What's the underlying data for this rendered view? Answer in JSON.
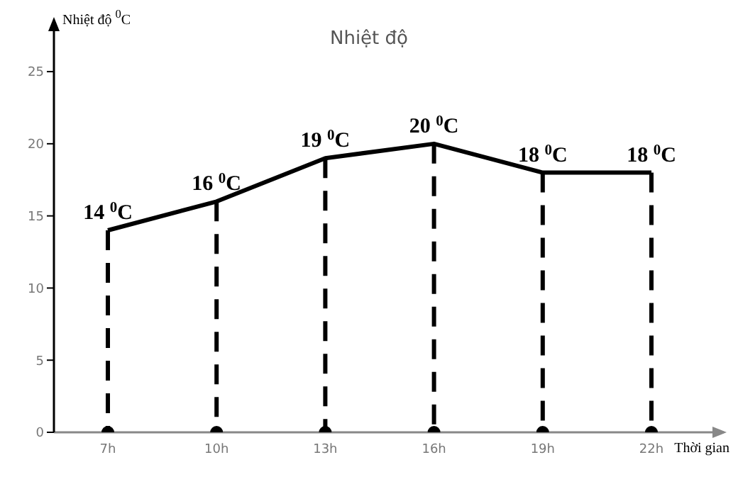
{
  "chart_data": {
    "type": "line",
    "title": "Nhiệt độ",
    "xlabel": "Thời gian",
    "ylabel": "Nhiệt độ $^{0}$C",
    "categories": [
      "7h",
      "10h",
      "13h",
      "16h",
      "19h",
      "22h"
    ],
    "series": [
      {
        "color": "#000000",
        "values": [
          14,
          16,
          19,
          20,
          18,
          18
        ],
        "value_labels": [
          "14 $^{0}$C",
          "16 $^{0}$C",
          "19 $^{0}$C",
          "20 $^{0}$C",
          "18 $^{0}$C",
          "18 $^{0}$C"
        ]
      }
    ],
    "ylim": [
      0,
      28
    ],
    "yticks": [
      0,
      5,
      10,
      15,
      20,
      25
    ],
    "line_style": "solid"
  }
}
